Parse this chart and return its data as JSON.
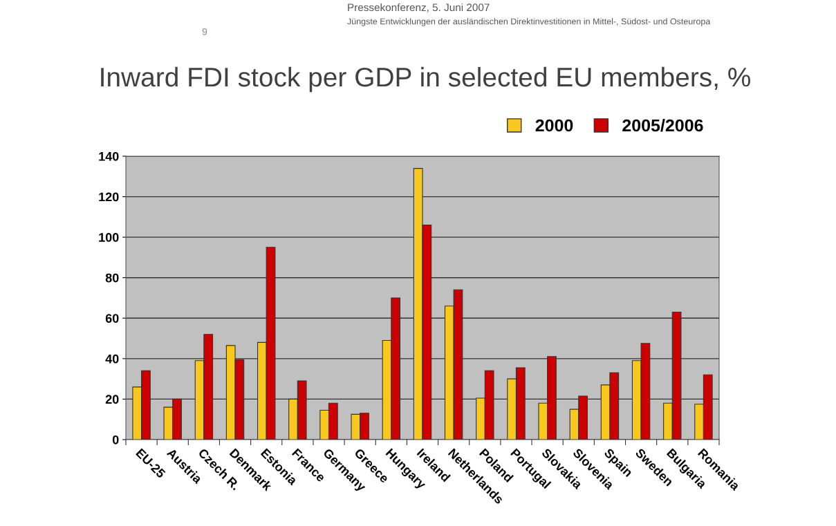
{
  "chart_data": {
    "type": "bar",
    "title": "Inward FDI stock per GDP in selected EU members, %",
    "annotations": [
      "Pressekonferenz, 5. Juni 2007",
      "Jüngste Entwicklungen der ausländischen Direktinvestitionen in Mittel-, Südost- und Osteuropa",
      "9"
    ],
    "categories": [
      "EU-25",
      "Austria",
      "Czech R.",
      "Denmark",
      "Estonia",
      "France",
      "Germany",
      "Greece",
      "Hungary",
      "Ireland",
      "Netherlands",
      "Poland",
      "Portugal",
      "Slovakia",
      "Slovenia",
      "Spain",
      "Sweden",
      "Bulgaria",
      "Romania"
    ],
    "series": [
      {
        "name": "2000",
        "color": "#f9c81e",
        "values": [
          26,
          16,
          39,
          46.5,
          48,
          20,
          14.5,
          12.5,
          49,
          134,
          66,
          20.5,
          30,
          18,
          15,
          27,
          39,
          18,
          17.5
        ]
      },
      {
        "name": "2005/2006",
        "color": "#cc0000",
        "values": [
          34,
          20,
          52,
          39.5,
          95,
          29,
          18,
          13,
          70,
          106,
          74,
          34,
          35.5,
          41,
          21.5,
          33,
          47.5,
          63,
          32
        ]
      }
    ],
    "ylim": [
      0,
      140
    ],
    "yticks": [
      0,
      20,
      40,
      60,
      80,
      100,
      120,
      140
    ],
    "grid": "y",
    "legend": "top right"
  }
}
